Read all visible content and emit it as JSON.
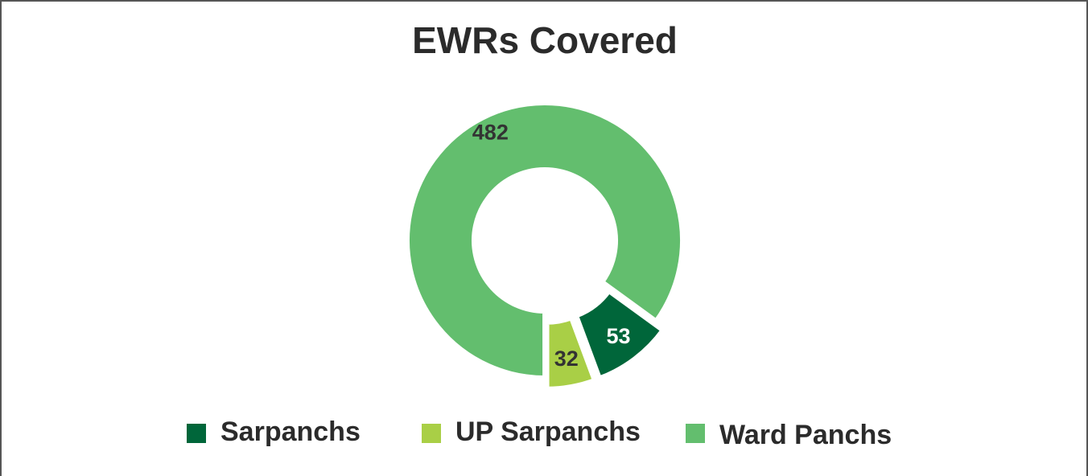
{
  "chart_data": {
    "type": "donut",
    "title": "EWRs Covered",
    "categories": [
      "Sarpanchs",
      "UP Sarpanchs",
      "Ward Panchs"
    ],
    "values": [
      53,
      32,
      482
    ],
    "colors": [
      "#00663a",
      "#a9cf46",
      "#63be6e"
    ],
    "label_colors": [
      "#ffffff",
      "#333333",
      "#333333"
    ],
    "exploded": [
      true,
      true,
      false
    ],
    "legend": "bottom"
  }
}
